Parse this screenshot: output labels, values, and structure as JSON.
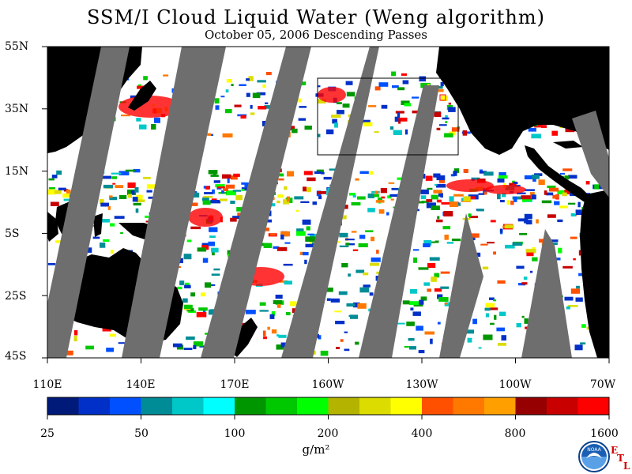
{
  "header": {
    "title": "SSM/I Cloud Liquid Water (Weng algorithm)",
    "subtitle": "October 05, 2006  Descending Passes"
  },
  "map": {
    "lat_labels": [
      "55N",
      "35N",
      "15N",
      "5S",
      "25S",
      "45S"
    ],
    "lon_labels": [
      "110E",
      "140E",
      "170E",
      "160W",
      "130W",
      "100W",
      "70W"
    ],
    "land_color": "#000000",
    "no_data_color": "#6e6e6e",
    "clear_color": "#ffffff"
  },
  "colorbar": {
    "tick_labels": [
      "25",
      "50",
      "100",
      "200",
      "400",
      "800",
      "1600"
    ],
    "unit": "g/m²",
    "colors": [
      "#001a7a",
      "#0030c8",
      "#0050ff",
      "#008c96",
      "#00c8c8",
      "#00ffff",
      "#009600",
      "#00c800",
      "#00ff00",
      "#b4b400",
      "#dcdc00",
      "#ffff00",
      "#ff5000",
      "#ff7800",
      "#ffa000",
      "#960000",
      "#c80000",
      "#ff0000"
    ]
  },
  "logo": {
    "noaa_text": "NOAA",
    "etl_letters": [
      "E",
      "T",
      "L"
    ]
  }
}
